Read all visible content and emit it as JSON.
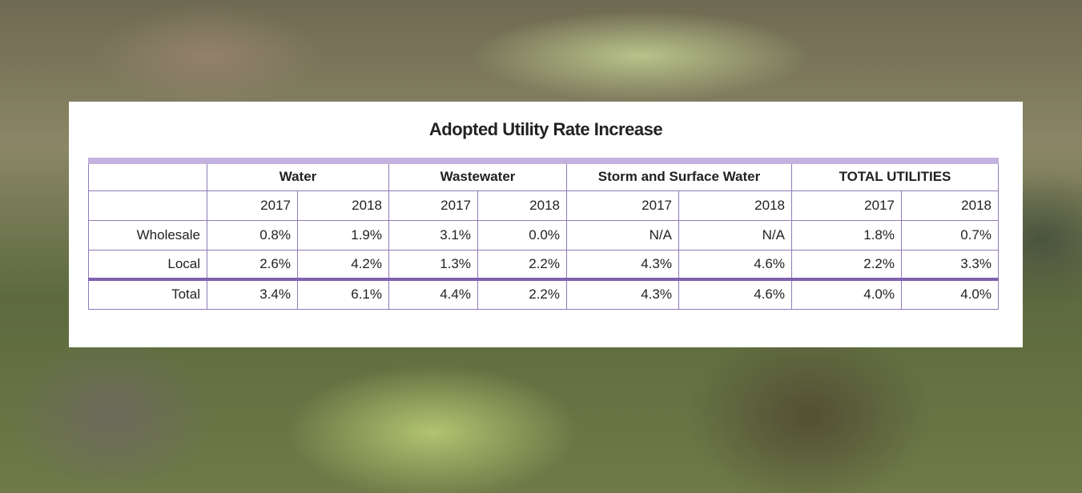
{
  "title": "Adopted Utility Rate Increase",
  "table": {
    "groups": [
      "Water",
      "Wastewater",
      "Storm and Surface Water",
      "TOTAL UTILITIES"
    ],
    "years": [
      "2017",
      "2018",
      "2017",
      "2018",
      "2017",
      "2018",
      "2017",
      "2018"
    ],
    "rows": [
      [
        "Wholesale",
        "0.8%",
        "1.9%",
        "3.1%",
        "0.0%",
        "N/A",
        "N/A",
        "1.8%",
        "0.7%"
      ],
      [
        "Local",
        "2.6%",
        "4.2%",
        "1.3%",
        "2.2%",
        "4.3%",
        "4.6%",
        "2.2%",
        "3.3%"
      ],
      [
        "Total",
        "3.4%",
        "6.1%",
        "4.4%",
        "2.2%",
        "4.3%",
        "4.6%",
        "4.0%",
        "4.0%"
      ]
    ]
  }
}
